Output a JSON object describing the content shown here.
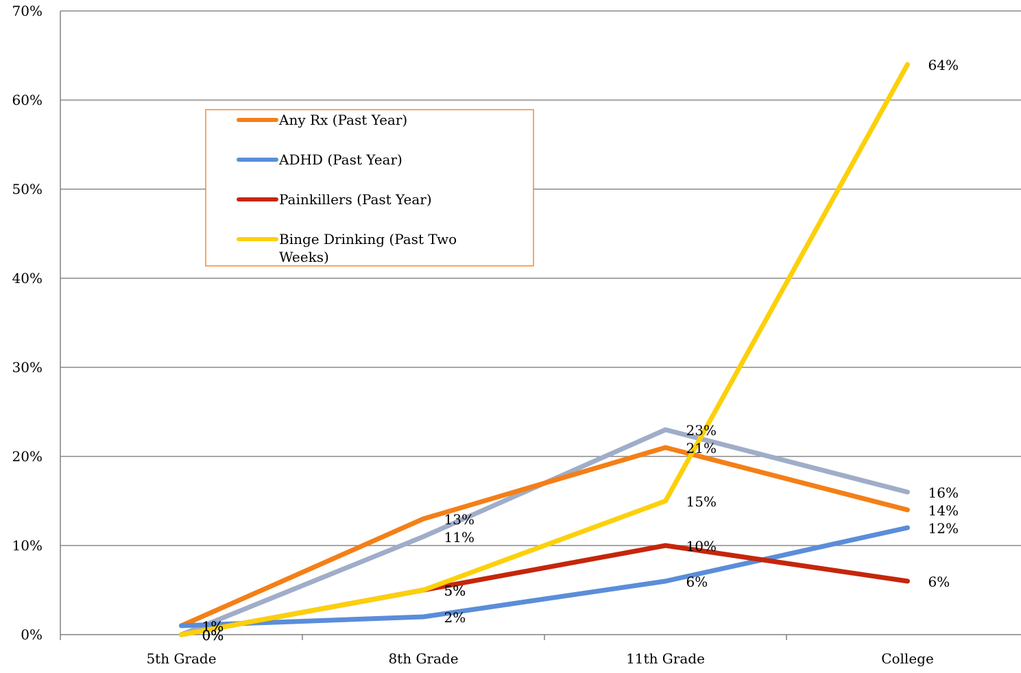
{
  "chart_data": {
    "type": "line",
    "categories": [
      "5th Grade",
      "8th Grade",
      "11th Grade",
      "College"
    ],
    "ylim": [
      0,
      70
    ],
    "y_ticks": [
      0,
      10,
      20,
      30,
      40,
      50,
      60,
      70
    ],
    "y_tick_labels": [
      "0%",
      "10%",
      "20%",
      "30%",
      "40%",
      "50%",
      "60%",
      "70%"
    ],
    "grid": true,
    "legend_position": "upper-left inside plot",
    "legend_border_color": "#f28a30",
    "series": [
      {
        "key": "any_rx",
        "name": "Any Rx (Past Year)",
        "color": "#f47f17",
        "values": [
          1,
          13,
          21,
          14
        ],
        "labels": [
          "1%",
          "13%",
          "21%",
          "14%"
        ],
        "in_legend": true
      },
      {
        "key": "adhd",
        "name": "ADHD (Past Year)",
        "color": "#5b8dd9",
        "values": [
          1,
          2,
          6,
          12
        ],
        "labels": [
          "1%",
          "2%",
          "6%",
          "12%"
        ],
        "in_legend": true
      },
      {
        "key": "painkillers",
        "name": "Painkillers (Past Year)",
        "color": "#c5260a",
        "values": [
          0,
          5,
          10,
          6
        ],
        "labels": [
          "0%",
          "5%",
          "10%",
          "6%"
        ],
        "in_legend": true
      },
      {
        "key": "binge",
        "name": "Binge Drinking (Past Two Weeks)",
        "legend_lines": [
          "Binge Drinking (Past Two",
          "Weeks)"
        ],
        "color": "#fcd00a",
        "values": [
          0,
          5,
          15,
          64
        ],
        "labels": [
          "0%",
          "5%",
          "15%",
          "64%"
        ],
        "in_legend": true
      },
      {
        "key": "unlabeled_gray",
        "color": "#9fadc9",
        "values": [
          0,
          11,
          23,
          16
        ],
        "labels": [
          "0%",
          "11%",
          "23%",
          "16%"
        ],
        "in_legend": false
      }
    ]
  }
}
